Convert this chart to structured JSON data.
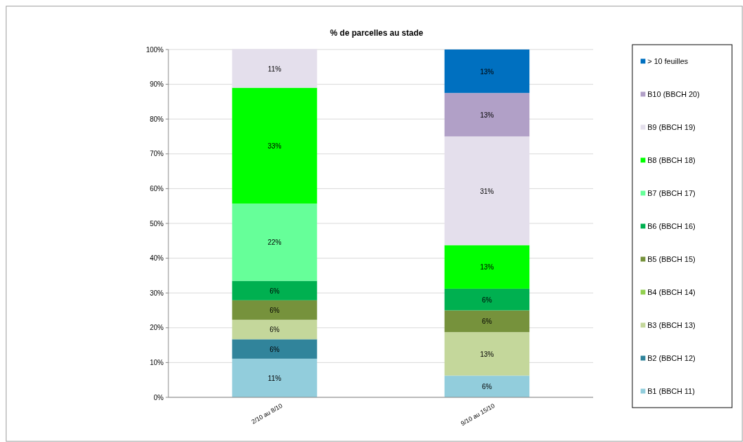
{
  "chart_data": {
    "type": "bar",
    "title": "% de parcelles  au stade",
    "categories": [
      "2/10 au 8/10",
      "9/10 au 15/10"
    ],
    "stacked": true,
    "ylim": [
      0,
      100
    ],
    "yticks": [
      {
        "value": 0,
        "label": "0%"
      },
      {
        "value": 10,
        "label": "10%"
      },
      {
        "value": 20,
        "label": "20%"
      },
      {
        "value": 30,
        "label": "30%"
      },
      {
        "value": 40,
        "label": "40%"
      },
      {
        "value": 50,
        "label": "50%"
      },
      {
        "value": 60,
        "label": "60%"
      },
      {
        "value": 70,
        "label": "70%"
      },
      {
        "value": 80,
        "label": "80%"
      },
      {
        "value": 90,
        "label": "90%"
      },
      {
        "value": 100,
        "label": "100%"
      }
    ],
    "grid": "y",
    "legend": "right",
    "series": [
      {
        "name": "B1 (BBCH 11)",
        "color": "#92cddc",
        "values": [
          11.1,
          6.25
        ],
        "value_labels": [
          "11%",
          "6%"
        ]
      },
      {
        "name": "B2 (BBCH 12)",
        "color": "#31849b",
        "values": [
          5.6,
          null
        ],
        "value_labels": [
          "6%",
          null
        ]
      },
      {
        "name": "B3 (BBCH 13)",
        "color": "#c4d79b",
        "values": [
          5.6,
          12.5
        ],
        "value_labels": [
          "6%",
          "13%"
        ]
      },
      {
        "name": "B4 (BBCH 14)",
        "color": "#92d050",
        "values": [
          null,
          null
        ],
        "value_labels": [
          null,
          null
        ]
      },
      {
        "name": "B5 (BBCH 15)",
        "color": "#76923c",
        "values": [
          5.6,
          6.25
        ],
        "value_labels": [
          "6%",
          "6%"
        ]
      },
      {
        "name": "B6 (BBCH 16)",
        "color": "#00b050",
        "values": [
          5.6,
          6.25
        ],
        "value_labels": [
          "6%",
          "6%"
        ]
      },
      {
        "name": "B7 (BBCH 17)",
        "color": "#66ff99",
        "values": [
          22.2,
          null
        ],
        "value_labels": [
          "22%",
          null
        ]
      },
      {
        "name": "B8 (BBCH 18)",
        "color": "#00ff00",
        "values": [
          33.3,
          12.5
        ],
        "value_labels": [
          "33%",
          "13%"
        ]
      },
      {
        "name": "B9 (BBCH 19)",
        "color": "#e4dfec",
        "values": [
          11.1,
          31.25
        ],
        "value_labels": [
          "11%",
          "31%"
        ]
      },
      {
        "name": "B10 (BBCH 20)",
        "color": "#b1a0c7",
        "values": [
          null,
          12.5
        ],
        "value_labels": [
          null,
          "13%"
        ]
      },
      {
        "name": "> 10 feuilles",
        "color": "#0070c0",
        "values": [
          null,
          12.5
        ],
        "value_labels": [
          null,
          "13%"
        ]
      }
    ]
  }
}
